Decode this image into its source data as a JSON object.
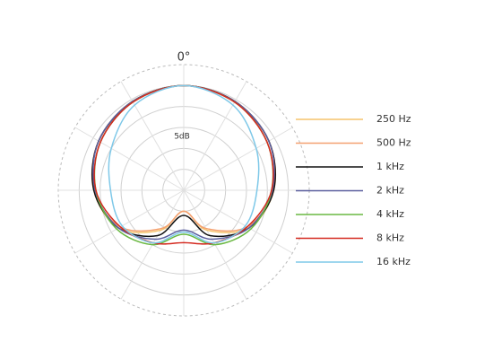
{
  "chart_data": {
    "type": "polar",
    "theta_label": "0°",
    "annotation": "5dB",
    "theta": [
      0,
      30,
      60,
      90,
      120,
      150,
      180,
      210,
      240,
      270,
      300,
      330
    ],
    "thetaticks": [
      0,
      30,
      60,
      90,
      120,
      150,
      180,
      210,
      240,
      270,
      300,
      330
    ],
    "rlim": [
      -25,
      5
    ],
    "rticks": [
      -20,
      -15,
      -10,
      -5,
      0
    ],
    "series": [
      {
        "name": "250 Hz",
        "color": "#f5c36b",
        "values": [
          0,
          -0.5,
          -1.5,
          -3.5,
          -7,
          -14,
          -20,
          -14,
          -7,
          -3.5,
          -1.5,
          -0.5
        ]
      },
      {
        "name": "500 Hz",
        "color": "#f4a070",
        "values": [
          0,
          -0.5,
          -1.5,
          -3.5,
          -7.5,
          -14.5,
          -20,
          -14.5,
          -7.5,
          -3.5,
          -1.5,
          -0.5
        ]
      },
      {
        "name": "1 kHz",
        "color": "#111111",
        "values": [
          0,
          -0.5,
          -1.5,
          -3.5,
          -7,
          -12.5,
          -19,
          -12.5,
          -7,
          -3.5,
          -1.5,
          -0.5
        ]
      },
      {
        "name": "2 kHz",
        "color": "#5b5f9e",
        "values": [
          0,
          -0.5,
          -1.5,
          -3.8,
          -7,
          -11.5,
          -15.5,
          -11.5,
          -7,
          -3.8,
          -1.5,
          -0.5
        ]
      },
      {
        "name": "4 kHz",
        "color": "#6ab842",
        "values": [
          0,
          -0.7,
          -2,
          -4,
          -6.5,
          -10,
          -14.5,
          -10,
          -6.5,
          -4,
          -2,
          -0.7
        ]
      },
      {
        "name": "8 kHz",
        "color": "#d42a20",
        "values": [
          0,
          -0.7,
          -2,
          -4,
          -7.5,
          -10.5,
          -12.5,
          -10.5,
          -7.5,
          -4,
          -2,
          -0.7
        ]
      },
      {
        "name": "16 kHz",
        "color": "#7ec8e8",
        "values": [
          0,
          -1.5,
          -5,
          -7.5,
          -8,
          -10.5,
          -15,
          -10.5,
          -8,
          -7.5,
          -5,
          -1.5
        ]
      }
    ]
  }
}
